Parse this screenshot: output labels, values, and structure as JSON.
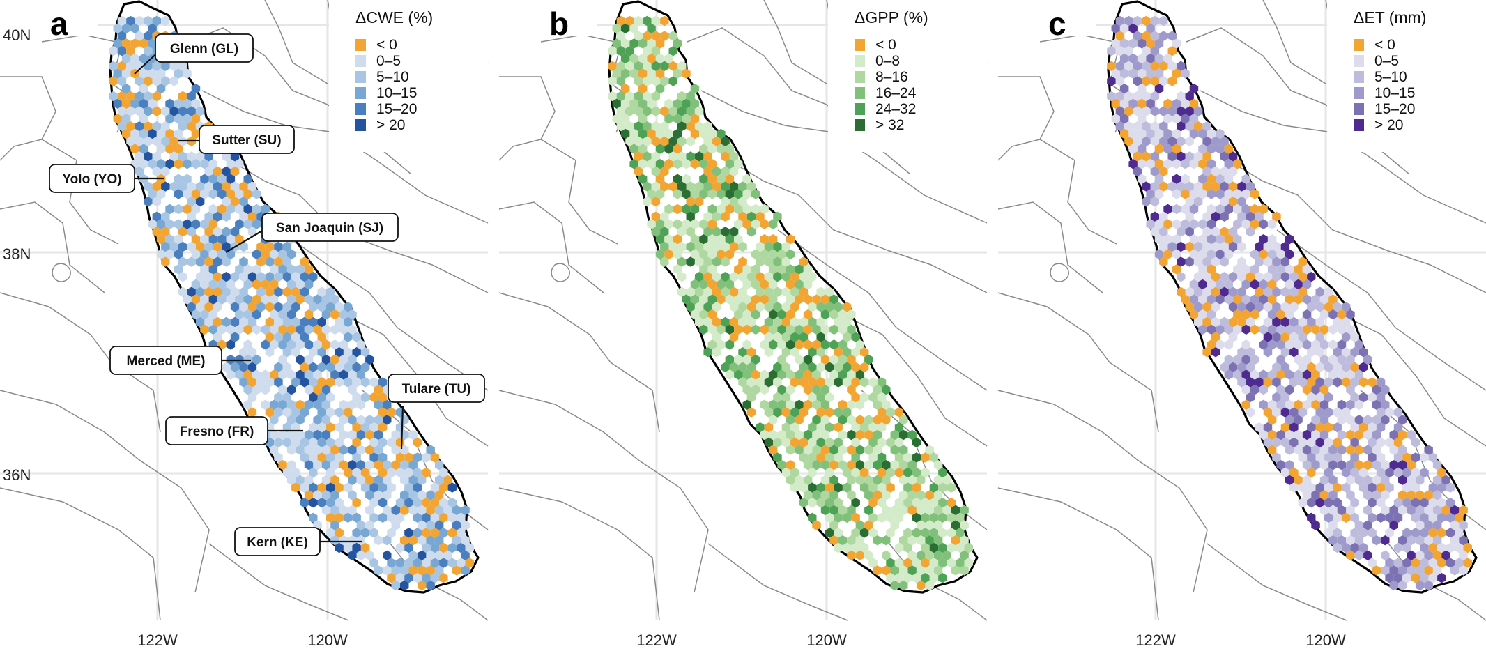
{
  "figure": {
    "latitude_labels": [
      "40N",
      "38N",
      "36N"
    ],
    "longitude_labels": [
      "122W",
      "120W"
    ],
    "colors": {
      "negative": "#f2a532",
      "county_lines": "#8a8a8a",
      "grid": "#e6e6e6",
      "outline": "#000000"
    }
  },
  "panels": [
    {
      "letter": "a",
      "legend_title": "ΔCWE (%)",
      "legend": [
        {
          "label": "< 0",
          "color": "#f2a532"
        },
        {
          "label": "0–5",
          "color": "#cfdcee"
        },
        {
          "label": "5–10",
          "color": "#a8c6e3"
        },
        {
          "label": "10–15",
          "color": "#78a7d3"
        },
        {
          "label": "15–20",
          "color": "#4a7fbf"
        },
        {
          "label": "> 20",
          "color": "#2453a0"
        }
      ],
      "county_labels": [
        {
          "text": "Glenn (GL)"
        },
        {
          "text": "Sutter (SU)"
        },
        {
          "text": "Yolo (YO)"
        },
        {
          "text": "San Joaquin (SJ)"
        },
        {
          "text": "Merced (ME)"
        },
        {
          "text": "Tulare (TU)"
        },
        {
          "text": "Fresno (FR)"
        },
        {
          "text": "Kern (KE)"
        }
      ]
    },
    {
      "letter": "b",
      "legend_title": "ΔGPP (%)",
      "legend": [
        {
          "label": "< 0",
          "color": "#f2a532"
        },
        {
          "label": "0–8",
          "color": "#d3ebc9"
        },
        {
          "label": "8–16",
          "color": "#aed89f"
        },
        {
          "label": "16–24",
          "color": "#80c07b"
        },
        {
          "label": "24–32",
          "color": "#4ea256"
        },
        {
          "label": "> 32",
          "color": "#2a6e33"
        }
      ],
      "county_labels": []
    },
    {
      "letter": "c",
      "legend_title": "ΔET (mm)",
      "legend": [
        {
          "label": "< 0",
          "color": "#f2a532"
        },
        {
          "label": "0–5",
          "color": "#dcdcec"
        },
        {
          "label": "5–10",
          "color": "#bdbcdc"
        },
        {
          "label": "10–15",
          "color": "#9e9acb"
        },
        {
          "label": "15–20",
          "color": "#7c71b2"
        },
        {
          "label": "> 20",
          "color": "#4f2a90"
        }
      ],
      "county_labels": []
    }
  ]
}
